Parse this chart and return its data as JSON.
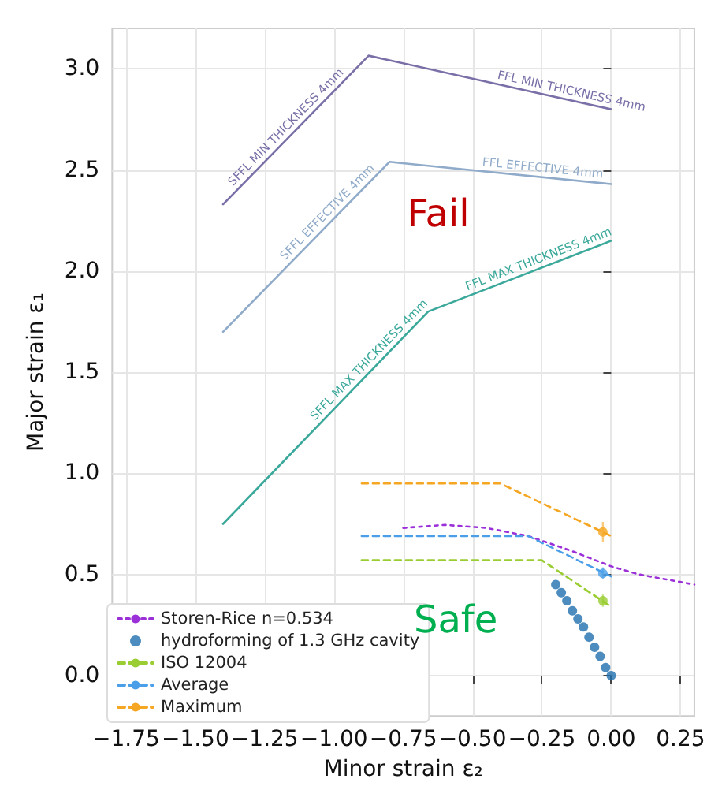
{
  "chart_data": {
    "type": "line",
    "xlabel": "Minor strain ε₂",
    "ylabel": "Major strain ε₁",
    "xlim": [
      -1.8,
      0.3
    ],
    "xticks": [
      {
        "value": -1.75,
        "label": "−1.75"
      },
      {
        "value": -1.5,
        "label": "−1.50"
      },
      {
        "value": -1.25,
        "label": "−1.25"
      },
      {
        "value": -1.0,
        "label": "−1.00"
      },
      {
        "value": -0.75,
        "label": "−0.75"
      },
      {
        "value": -0.5,
        "label": "−0.50"
      },
      {
        "value": -0.25,
        "label": "−0.25"
      },
      {
        "value": 0,
        "label": "0.00"
      },
      0.25
    ],
    "ylim": [
      -0.2,
      3.2
    ],
    "yticks": [
      {
        "value": 0,
        "label": "0.0"
      },
      0.5,
      {
        "value": 1,
        "label": "1.0"
      },
      1.5,
      {
        "value": 2,
        "label": "2.0"
      },
      2.5,
      {
        "value": 3,
        "label": "3.0"
      }
    ],
    "grid": true,
    "legend": "bottom left",
    "series": [
      {
        "color": "#7b6fa8",
        "line_style": "solid",
        "marker": "none",
        "x": [
          -1.4,
          -0.875,
          0.0
        ],
        "values": [
          2.33,
          3.065,
          2.8
        ]
      },
      {
        "color": "#8fabc9",
        "line_style": "solid",
        "marker": "none",
        "x": [
          -1.4,
          -0.8,
          0.0
        ],
        "values": [
          1.7,
          2.54,
          2.43
        ]
      },
      {
        "color": "#3aa89a",
        "line_style": "solid",
        "marker": "none",
        "x": [
          -1.4,
          -0.66,
          0.0
        ],
        "values": [
          0.75,
          1.8,
          2.15
        ]
      },
      {
        "name": "Storen-Rice n=0.534",
        "color": "#9b30d9",
        "line_style": "dotted",
        "marker": "none",
        "x": [
          -0.75,
          -0.6,
          -0.45,
          -0.3,
          -0.15,
          0.0,
          0.1,
          0.2,
          0.3
        ],
        "values": [
          0.73,
          0.745,
          0.73,
          0.69,
          0.62,
          0.54,
          0.5,
          0.475,
          0.45
        ]
      },
      {
        "name": "hydroforming of 1.3 GHz cavity",
        "type": "scatter",
        "color": "#1f6fae",
        "marker": "circle",
        "x": [
          -0.2,
          -0.18,
          -0.16,
          -0.14,
          -0.12,
          -0.1,
          -0.08,
          -0.06,
          -0.04,
          -0.02,
          0.0
        ],
        "values": [
          0.45,
          0.41,
          0.37,
          0.32,
          0.28,
          0.24,
          0.19,
          0.14,
          0.095,
          0.04,
          0.0
        ]
      },
      {
        "name": "ISO 12004",
        "color": "#9acd32",
        "line_style": "dashed",
        "marker": "none",
        "x": [
          -0.9,
          -0.25,
          0.0
        ],
        "values": [
          0.57,
          0.57,
          0.34
        ]
      },
      {
        "name": "Average",
        "color": "#4a9fe8",
        "line_style": "dashed",
        "marker": "none",
        "x": [
          -0.9,
          -0.3,
          0.0
        ],
        "values": [
          0.69,
          0.69,
          0.49
        ]
      },
      {
        "name": "Maximum",
        "color": "#f5a623",
        "line_style": "dashed",
        "marker": "none",
        "x": [
          -0.9,
          -0.4,
          0.0
        ],
        "values": [
          0.95,
          0.95,
          0.69
        ]
      },
      {
        "type": "scatter",
        "color": "#9acd32",
        "marker": "circle",
        "x": [
          -0.03
        ],
        "values": [
          0.37
        ],
        "errors": [
          0.03
        ]
      },
      {
        "type": "scatter",
        "color": "#4a9fe8",
        "marker": "circle",
        "x": [
          -0.03
        ],
        "values": [
          0.505
        ],
        "errors": [
          0.03
        ]
      },
      {
        "type": "scatter",
        "color": "#f5a623",
        "marker": "circle",
        "x": [
          -0.03
        ],
        "values": [
          0.71
        ],
        "errors": [
          0.05
        ]
      }
    ],
    "annotations": [
      {
        "text": "SFFL MIN THICKNESS 4mm",
        "x": -1.15,
        "y": 2.68
      },
      {
        "text": "FFL MIN THICKNESS 4mm",
        "x": -0.15,
        "y": 2.845
      },
      {
        "text": "SFFL EFFECTIVE 4mm",
        "x": -1.0,
        "y": 2.26
      },
      {
        "text": "FFL EFFECTIVE 4mm",
        "x": -0.25,
        "y": 2.464
      },
      {
        "text": "SFFL MAX THICKNESS 4mm",
        "x": -0.85,
        "y": 1.53
      },
      {
        "text": "FFL MAX THICKNESS 4mm",
        "x": -0.25,
        "y": 2.017
      },
      "Fail",
      "Safe"
    ]
  }
}
